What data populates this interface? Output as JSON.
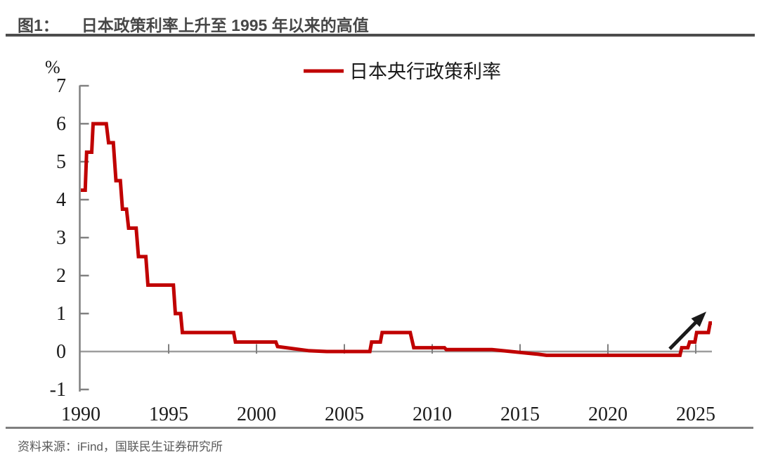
{
  "header": {
    "figure_label": "图1：",
    "title": "日本政策利率上升至 1995 年以来的高值"
  },
  "footer": {
    "source": "资料来源：iFind，国联民生证券研究所"
  },
  "colors": {
    "series_red": "#c00000",
    "axis_gray": "#808080",
    "zero_line_gray": "#9e9e9e",
    "arrow_black": "#1a1a1a",
    "title_gray": "#474747",
    "source_gray": "#595959"
  },
  "chart_data": {
    "type": "line",
    "title": "日本政策利率上升至 1995 年以来的高值",
    "legend": [
      {
        "name": "日本央行政策利率",
        "color": "#c00000"
      }
    ],
    "legend_position": "top-center",
    "grid": false,
    "zero_line": true,
    "y_axis": {
      "unit_label": "%",
      "min": -1,
      "max": 7,
      "tick_step": 1,
      "ticks": [
        7,
        6,
        5,
        4,
        3,
        2,
        1,
        0,
        -1
      ]
    },
    "x_axis": {
      "range": [
        1990,
        2026
      ],
      "tick_step_years": 5,
      "ticks": [
        1990,
        1995,
        2000,
        2005,
        2010,
        2015,
        2020,
        2025
      ]
    },
    "series": [
      {
        "name": "日本央行政策利率",
        "color": "#c00000",
        "points": [
          [
            1990.0,
            4.25
          ],
          [
            1990.25,
            4.25
          ],
          [
            1990.33,
            5.25
          ],
          [
            1990.62,
            5.25
          ],
          [
            1990.7,
            6.0
          ],
          [
            1991.45,
            6.0
          ],
          [
            1991.58,
            5.5
          ],
          [
            1991.85,
            5.5
          ],
          [
            1992.0,
            4.5
          ],
          [
            1992.25,
            4.5
          ],
          [
            1992.37,
            3.75
          ],
          [
            1992.6,
            3.75
          ],
          [
            1992.72,
            3.25
          ],
          [
            1993.15,
            3.25
          ],
          [
            1993.28,
            2.5
          ],
          [
            1993.7,
            2.5
          ],
          [
            1993.82,
            1.75
          ],
          [
            1995.27,
            1.75
          ],
          [
            1995.38,
            1.0
          ],
          [
            1995.68,
            1.0
          ],
          [
            1995.78,
            0.5
          ],
          [
            1998.7,
            0.5
          ],
          [
            1998.8,
            0.25
          ],
          [
            2001.1,
            0.25
          ],
          [
            2001.2,
            0.13
          ],
          [
            2003.0,
            0.02
          ],
          [
            2004.0,
            0.0
          ],
          [
            2006.45,
            0.0
          ],
          [
            2006.55,
            0.25
          ],
          [
            2007.05,
            0.25
          ],
          [
            2007.15,
            0.5
          ],
          [
            2008.75,
            0.5
          ],
          [
            2008.85,
            0.3
          ],
          [
            2008.95,
            0.1
          ],
          [
            2010.7,
            0.1
          ],
          [
            2010.8,
            0.05
          ],
          [
            2013.4,
            0.05
          ],
          [
            2016.0,
            -0.07
          ],
          [
            2016.5,
            -0.1
          ],
          [
            2024.1,
            -0.1
          ],
          [
            2024.2,
            0.1
          ],
          [
            2024.55,
            0.1
          ],
          [
            2024.65,
            0.25
          ],
          [
            2024.95,
            0.25
          ],
          [
            2025.05,
            0.5
          ],
          [
            2025.72,
            0.5
          ],
          [
            2025.82,
            0.75
          ],
          [
            2025.92,
            0.75
          ]
        ]
      }
    ],
    "annotations": [
      {
        "type": "arrow",
        "from": [
          2023.52,
          0.07
        ],
        "to": [
          2025.6,
          1.05
        ],
        "color": "#1a1a1a"
      }
    ]
  }
}
